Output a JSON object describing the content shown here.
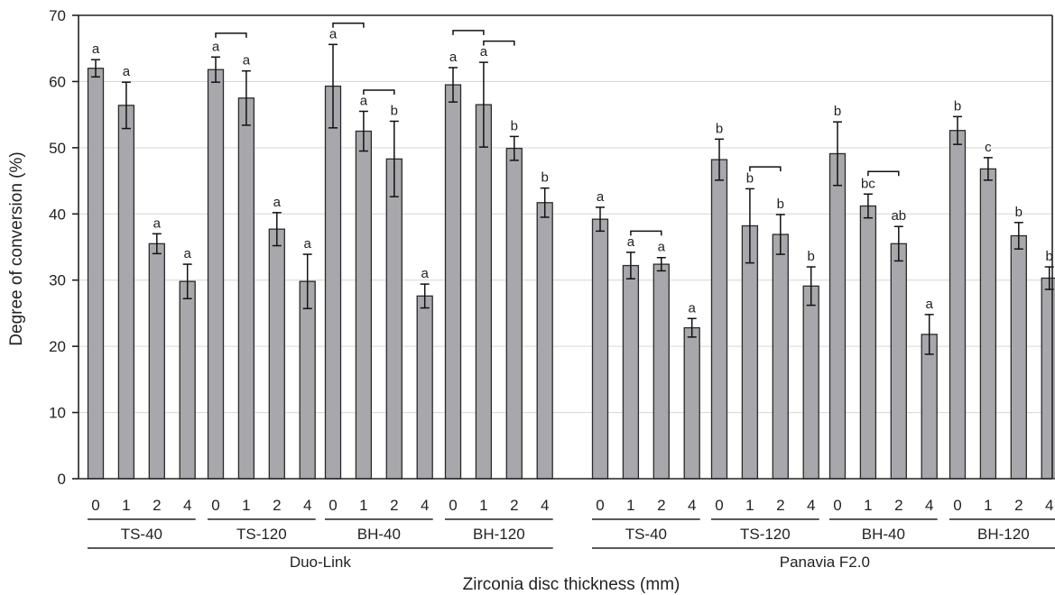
{
  "chart_data": {
    "type": "bar",
    "xlabel": "Zirconia disc thickness (mm)",
    "ylabel": "Degree of conversion (%)",
    "ylim": [
      0,
      70
    ],
    "yticks": [
      0,
      10,
      20,
      30,
      40,
      50,
      60,
      70
    ],
    "grid": true,
    "colors": {
      "bar": "#a8a8ac",
      "bar_edge": "#2a2a2a",
      "grid": "#d6d6d6",
      "axis": "#222222"
    },
    "cements": [
      {
        "name": "Duo-Link",
        "groups": [
          {
            "name": "TS-40",
            "bars": [
              {
                "thickness": "0",
                "value": 62.0,
                "error": 1.3,
                "label": "a"
              },
              {
                "thickness": "1",
                "value": 56.4,
                "error": 3.5,
                "label": "a"
              },
              {
                "thickness": "2",
                "value": 35.5,
                "error": 1.5,
                "label": "a"
              },
              {
                "thickness": "4",
                "value": 29.8,
                "error": 2.6,
                "label": "a"
              }
            ]
          },
          {
            "name": "TS-120",
            "bars": [
              {
                "thickness": "0",
                "value": 61.8,
                "error": 1.9,
                "label": "a"
              },
              {
                "thickness": "1",
                "value": 57.5,
                "error": 4.1,
                "label": "a"
              },
              {
                "thickness": "2",
                "value": 37.7,
                "error": 2.5,
                "label": "a"
              },
              {
                "thickness": "4",
                "value": 29.8,
                "error": 4.1,
                "label": "a"
              }
            ]
          },
          {
            "name": "BH-40",
            "bars": [
              {
                "thickness": "0",
                "value": 59.3,
                "error": 6.3,
                "label": "a"
              },
              {
                "thickness": "1",
                "value": 52.5,
                "error": 3.0,
                "label": "a"
              },
              {
                "thickness": "2",
                "value": 48.3,
                "error": 5.7,
                "label": "b"
              },
              {
                "thickness": "4",
                "value": 27.6,
                "error": 1.8,
                "label": "a"
              }
            ]
          },
          {
            "name": "BH-120",
            "bars": [
              {
                "thickness": "0",
                "value": 59.5,
                "error": 2.6,
                "label": "a"
              },
              {
                "thickness": "1",
                "value": 56.5,
                "error": 6.4,
                "label": "a"
              },
              {
                "thickness": "2",
                "value": 49.9,
                "error": 1.8,
                "label": "b"
              },
              {
                "thickness": "4",
                "value": 41.7,
                "error": 2.2,
                "label": "b"
              }
            ]
          }
        ]
      },
      {
        "name": "Panavia F2.0",
        "groups": [
          {
            "name": "TS-40",
            "bars": [
              {
                "thickness": "0",
                "value": 39.2,
                "error": 1.8,
                "label": "a"
              },
              {
                "thickness": "1",
                "value": 32.2,
                "error": 2.0,
                "label": "a"
              },
              {
                "thickness": "2",
                "value": 32.4,
                "error": 1.0,
                "label": "a"
              },
              {
                "thickness": "4",
                "value": 22.8,
                "error": 1.4,
                "label": "a"
              }
            ]
          },
          {
            "name": "TS-120",
            "bars": [
              {
                "thickness": "0",
                "value": 48.2,
                "error": 3.1,
                "label": "b"
              },
              {
                "thickness": "1",
                "value": 38.2,
                "error": 5.6,
                "label": "b"
              },
              {
                "thickness": "2",
                "value": 36.9,
                "error": 3.0,
                "label": "b"
              },
              {
                "thickness": "4",
                "value": 29.1,
                "error": 2.9,
                "label": "b"
              }
            ]
          },
          {
            "name": "BH-40",
            "bars": [
              {
                "thickness": "0",
                "value": 49.1,
                "error": 4.8,
                "label": "b"
              },
              {
                "thickness": "1",
                "value": 41.2,
                "error": 1.8,
                "label": "bc"
              },
              {
                "thickness": "2",
                "value": 35.5,
                "error": 2.6,
                "label": "ab"
              },
              {
                "thickness": "4",
                "value": 21.8,
                "error": 3.0,
                "label": "a"
              }
            ]
          },
          {
            "name": "BH-120",
            "bars": [
              {
                "thickness": "0",
                "value": 52.6,
                "error": 2.1,
                "label": "b"
              },
              {
                "thickness": "1",
                "value": 46.8,
                "error": 1.7,
                "label": "c"
              },
              {
                "thickness": "2",
                "value": 36.7,
                "error": 2.0,
                "label": "b"
              },
              {
                "thickness": "4",
                "value": 30.3,
                "error": 1.7,
                "label": "b"
              }
            ]
          }
        ]
      }
    ],
    "brackets": [
      {
        "cement": 0,
        "group": 1,
        "from": 0,
        "to": 1,
        "level": 67.3
      },
      {
        "cement": 0,
        "group": 2,
        "from": 0,
        "to": 1,
        "level": 68.8
      },
      {
        "cement": 0,
        "group": 2,
        "from": 1,
        "to": 2,
        "level": 58.7
      },
      {
        "cement": 0,
        "group": 3,
        "from": 0,
        "to": 1,
        "level": 67.7
      },
      {
        "cement": 0,
        "group": 3,
        "from": 1,
        "to": 2,
        "level": 66.1
      },
      {
        "cement": 1,
        "group": 0,
        "from": 1,
        "to": 2,
        "level": 37.4
      },
      {
        "cement": 1,
        "group": 1,
        "from": 1,
        "to": 2,
        "level": 47.1
      },
      {
        "cement": 1,
        "group": 2,
        "from": 1,
        "to": 2,
        "level": 46.4
      }
    ]
  }
}
